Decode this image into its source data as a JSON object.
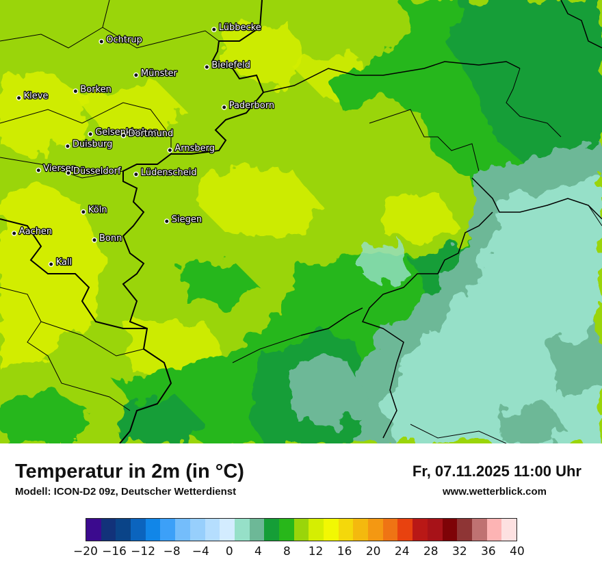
{
  "map": {
    "title": "Temperatur in 2m (in °C)",
    "model": "Modell: ICON-D2 09z, Deutscher Wetterdienst",
    "datetime": "Fr, 07.11.2025 11:00 Uhr",
    "website": "www.wetterblick.com",
    "cities": [
      {
        "name": "Lübbecke",
        "lon": 8.62,
        "lat": 52.3
      },
      {
        "name": "Ochtrup",
        "lon": 7.19,
        "lat": 52.21
      },
      {
        "name": "Bielefeld",
        "lon": 8.53,
        "lat": 52.02
      },
      {
        "name": "Münster",
        "lon": 7.63,
        "lat": 51.96
      },
      {
        "name": "Borken",
        "lon": 6.86,
        "lat": 51.84
      },
      {
        "name": "Kleve",
        "lon": 6.14,
        "lat": 51.79
      },
      {
        "name": "Paderborn",
        "lon": 8.75,
        "lat": 51.72
      },
      {
        "name": "Gelsenkirchen",
        "lon": 7.05,
        "lat": 51.52
      },
      {
        "name": "Dortmund",
        "lon": 7.47,
        "lat": 51.51
      },
      {
        "name": "Duisburg",
        "lon": 6.76,
        "lat": 51.43
      },
      {
        "name": "Arnsberg",
        "lon": 8.06,
        "lat": 51.4
      },
      {
        "name": "Viersen",
        "lon": 6.39,
        "lat": 51.25
      },
      {
        "name": "Düsseldorf",
        "lon": 6.77,
        "lat": 51.23
      },
      {
        "name": "Lüdenscheid",
        "lon": 7.63,
        "lat": 51.22
      },
      {
        "name": "Köln",
        "lon": 6.96,
        "lat": 50.94
      },
      {
        "name": "Siegen",
        "lon": 8.02,
        "lat": 50.87
      },
      {
        "name": "Aachen",
        "lon": 6.08,
        "lat": 50.78
      },
      {
        "name": "Bonn",
        "lon": 7.1,
        "lat": 50.73
      },
      {
        "name": "Kall",
        "lon": 6.55,
        "lat": 50.55
      }
    ],
    "legend": {
      "colors": [
        "#3b0a8e",
        "#12327a",
        "#0a4488",
        "#0b64be",
        "#1186e8",
        "#3ca0f8",
        "#74bdfb",
        "#97cffc",
        "#b5defe",
        "#d3ecff",
        "#96e0c8",
        "#6db897",
        "#159e37",
        "#28b71a",
        "#9ad50a",
        "#d5ee02",
        "#f2f803",
        "#f4d80b",
        "#f4b90e",
        "#f49812",
        "#ef7414",
        "#e8420f",
        "#b91816",
        "#a71218",
        "#7e0307",
        "#8e3535",
        "#bf7272",
        "#fdb4b4",
        "#fde1e1"
      ],
      "ticks": [
        "−20",
        "−16",
        "−12",
        "−8",
        "−4",
        "0",
        "4",
        "8",
        "12",
        "16",
        "20",
        "24",
        "28",
        "32",
        "36",
        "40"
      ]
    }
  }
}
